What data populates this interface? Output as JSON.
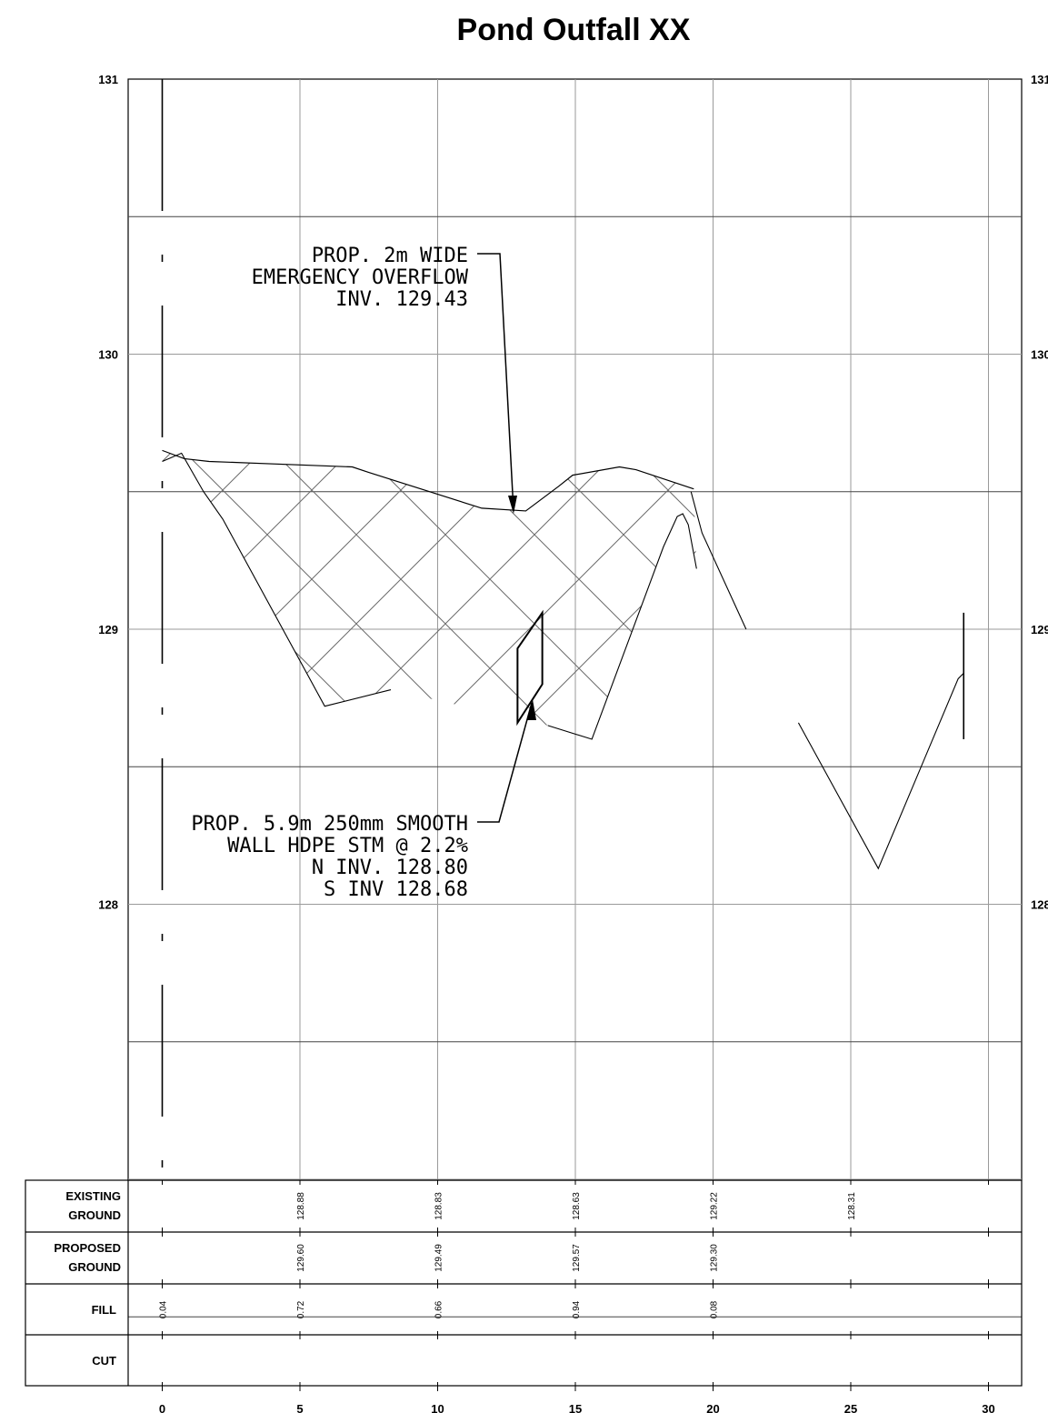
{
  "title": "Pond Outfall XX",
  "chart_data": {
    "type": "profile",
    "title": "Pond Outfall XX",
    "x_ticks": [
      "0",
      "5",
      "10",
      "15",
      "20",
      "25",
      "30"
    ],
    "y_ticks_left": [
      "131",
      "130",
      "129",
      "128"
    ],
    "y_ticks_right": [
      "131",
      "130",
      "129",
      "128"
    ],
    "xlim": [
      -1.2,
      31.2
    ],
    "ylim": [
      126.0,
      131.0
    ],
    "grid": true,
    "proposed_ground": {
      "name": "",
      "x": [
        0,
        0.8,
        1.7,
        6.9,
        7.5,
        11.6,
        13.2,
        14.4,
        14.9,
        16.6,
        17.2,
        19.3
      ],
      "y": [
        129.65,
        129.62,
        129.61,
        129.59,
        129.57,
        129.44,
        129.43,
        129.52,
        129.56,
        129.59,
        129.58,
        129.51
      ]
    },
    "existing_ground": {
      "name": "",
      "x": [
        0,
        0.7,
        1.5,
        2.2,
        5.9,
        8.3
      ],
      "y": [
        129.61,
        129.64,
        129.5,
        129.4,
        128.72,
        128.78
      ]
    },
    "existing_ground_2": {
      "name": "",
      "x": [
        19.4,
        19.1,
        18.9,
        18.7,
        18.2,
        15.6,
        14.0
      ],
      "y": [
        129.22,
        129.38,
        129.42,
        129.41,
        129.3,
        128.6,
        128.65
      ]
    },
    "existing_ground_3": {
      "name": "",
      "x": [
        19.2,
        19.6,
        21.2
      ],
      "y": [
        129.5,
        129.35,
        129.0
      ]
    },
    "existing_ground_4": {
      "name": "",
      "x": [
        23.1,
        26.0,
        28.9,
        29.1
      ],
      "y": [
        128.66,
        128.13,
        128.82,
        128.84
      ]
    },
    "culvert": {
      "x": [
        12.9,
        13.8
      ],
      "y_bottom": [
        128.66,
        128.8
      ],
      "y_top": [
        128.93,
        129.06
      ]
    },
    "right_marker": {
      "x": 29.1,
      "y": [
        128.6,
        129.06
      ]
    },
    "annotations": [
      {
        "lines": [
          "PROP. 2m WIDE",
          "EMERGENCY OVERFLOW",
          "INV. 129.43"
        ]
      },
      {
        "lines": [
          "PROP. 5.9m 250mm SMOOTH",
          "WALL HDPE STM @ 2.2%",
          "N INV. 128.80",
          "S INV 128.68"
        ]
      }
    ],
    "table_rows": [
      {
        "label": [
          "EXISTING",
          "GROUND"
        ],
        "values": [
          [
            "5",
            "128.88"
          ],
          [
            "10",
            "128.83"
          ],
          [
            "15",
            "128.63"
          ],
          [
            "20",
            "129.22"
          ],
          [
            "25",
            "128.31"
          ]
        ]
      },
      {
        "label": [
          "PROPOSED",
          "GROUND"
        ],
        "values": [
          [
            "5",
            "129.60"
          ],
          [
            "10",
            "129.49"
          ],
          [
            "15",
            "129.57"
          ],
          [
            "20",
            "129.30"
          ]
        ]
      },
      {
        "label": [
          "FILL"
        ],
        "values": [
          [
            "0",
            "0.04"
          ],
          [
            "5",
            "0.72"
          ],
          [
            "10",
            "0.66"
          ],
          [
            "15",
            "0.94"
          ],
          [
            "20",
            "0.08"
          ]
        ]
      },
      {
        "label": [
          "CUT"
        ],
        "values": []
      }
    ]
  }
}
